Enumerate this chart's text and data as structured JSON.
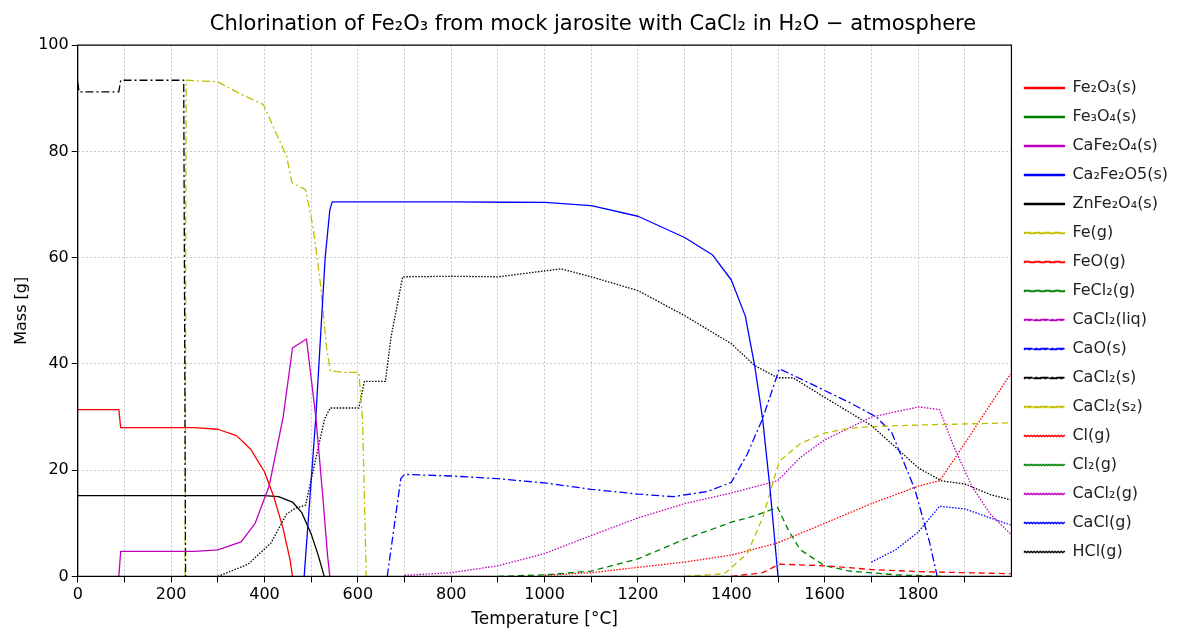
{
  "chart_data": {
    "type": "line",
    "title": "Chlorination of Fe₂O₃ from mock jarosite with CaCl₂ in H₂O − atmosphere",
    "xlabel": "Temperature [°C]",
    "ylabel": "Mass [g]",
    "xlim": [
      0,
      2000
    ],
    "xticks": [
      0,
      {
        "value": 100,
        "label": null
      },
      200,
      {
        "value": 300,
        "label": null
      },
      400,
      {
        "value": 500,
        "label": null
      },
      600,
      {
        "value": 700,
        "label": null
      },
      800,
      {
        "value": 900,
        "label": null
      },
      1000,
      {
        "value": 1100,
        "label": null
      },
      1200,
      {
        "value": 1300,
        "label": null
      },
      1400,
      {
        "value": 1500,
        "label": null
      },
      1600,
      {
        "value": 1700,
        "label": null
      },
      1800,
      {
        "value": 1900,
        "label": null
      }
    ],
    "ylim": [
      0,
      100
    ],
    "yticks": [
      0,
      20,
      40,
      60,
      80,
      100
    ],
    "grid": true,
    "legend": "right",
    "series": [
      {
        "name": "Fe₂O₃(s)",
        "color": "#ff0000",
        "line_style": "solid",
        "x": [
          0,
          88,
          92,
          250,
          300,
          340,
          370,
          400,
          420,
          440,
          455,
          460
        ],
        "values": [
          31.4,
          31.4,
          28,
          28,
          27.7,
          26.5,
          24,
          19.7,
          15,
          9,
          3,
          0
        ]
      },
      {
        "name": "Fe₃O₄(s)",
        "color": "#008000",
        "line_style": "solid"
      },
      {
        "name": "CaFe₂O₄(s)",
        "color": "#bf00bf",
        "line_style": "solid",
        "x": [
          88,
          92,
          250,
          300,
          350,
          380,
          410,
          440,
          460,
          490,
          510,
          525,
          535,
          540
        ],
        "values": [
          0,
          4.7,
          4.7,
          5,
          6.5,
          10,
          17,
          30,
          43,
          44.7,
          30,
          15,
          4,
          0
        ]
      },
      {
        "name": "Ca₂Fe₂O5(s)",
        "color": "#0000ff",
        "line_style": "solid",
        "x": [
          485,
          510,
          530,
          540,
          545,
          800,
          1000,
          1100,
          1200,
          1300,
          1360,
          1400,
          1430,
          1450,
          1467,
          1483,
          1500
        ],
        "values": [
          0,
          30,
          60,
          69,
          70.5,
          70.5,
          70.4,
          69.8,
          67.8,
          63.8,
          60.5,
          55.8,
          49,
          39.7,
          29.7,
          16.4,
          0
        ]
      },
      {
        "name": "ZnFe₂O₄(s)",
        "color": "#000000",
        "line_style": "solid",
        "x": [
          0,
          400,
          430,
          460,
          480,
          500,
          515,
          528
        ],
        "values": [
          15.2,
          15.2,
          15,
          14,
          12,
          8,
          4,
          0
        ]
      },
      {
        "name": "Fe(g)",
        "color": "#bfbf00",
        "line_style": "dashed",
        "x": [
          1300,
          1385,
          1434,
          1467,
          1487,
          1503,
          1548,
          1600,
          1654,
          1700,
          1801,
          1998
        ],
        "values": [
          0,
          0.5,
          4.3,
          11,
          17,
          21.7,
          25,
          27,
          27.9,
          28.2,
          28.5,
          28.9
        ]
      },
      {
        "name": "FeO(g)",
        "color": "#ff0000",
        "line_style": "dashed",
        "x": [
          1400,
          1467,
          1503,
          1600,
          1700,
          1801,
          1998
        ],
        "values": [
          0,
          0.7,
          2.3,
          2,
          1.3,
          0.9,
          0.5
        ]
      },
      {
        "name": "FeCl₂(g)",
        "color": "#008000",
        "line_style": "dashed",
        "x": [
          900,
          1000,
          1100,
          1200,
          1300,
          1400,
          1450,
          1499,
          1524,
          1548,
          1600,
          1654,
          1752,
          1850
        ],
        "values": [
          0,
          0.3,
          1,
          3.3,
          7,
          10.2,
          11.4,
          13,
          8.4,
          5,
          2,
          1,
          0.3,
          0
        ]
      },
      {
        "name": "CaCl₂(liq)",
        "color": "#bf00bf",
        "line_style": "dashdot"
      },
      {
        "name": "CaO(s)",
        "color": "#0000ff",
        "line_style": "dashdot",
        "x": [
          663,
          692,
          700,
          800,
          900,
          1000,
          1100,
          1200,
          1276,
          1349,
          1400,
          1434,
          1467,
          1503,
          1600,
          1654,
          1711,
          1744,
          1793,
          1825,
          1841
        ],
        "values": [
          0,
          18.4,
          19.2,
          18.9,
          18.4,
          17.6,
          16.4,
          15.5,
          15,
          16,
          17.7,
          23,
          29.7,
          39.1,
          35,
          32.7,
          30,
          27,
          16.4,
          6.3,
          0
        ]
      },
      {
        "name": "CaCl₂(s)",
        "color": "#000000",
        "line_style": "dashdot",
        "x": [
          0,
          3,
          88,
          92,
          227,
          231
        ],
        "values": [
          93,
          91.2,
          91.2,
          93.4,
          93.4,
          0
        ]
      },
      {
        "name": "CaCl₂(s₂)",
        "color": "#bfbf00",
        "line_style": "dashdot",
        "x": [
          230,
          232,
          300,
          349,
          398,
          423,
          447,
          459,
          488,
          504,
          520,
          533,
          541,
          569,
          602,
          610,
          618
        ],
        "values": [
          0,
          93.4,
          93.1,
          90.8,
          88.8,
          83.8,
          79.2,
          74.1,
          72.8,
          65.8,
          55,
          43,
          38.7,
          38.4,
          38.4,
          29.7,
          0
        ]
      },
      {
        "name": "Cl(g)",
        "color": "#ff0000",
        "line_style": "dotted",
        "x": [
          1000,
          1100,
          1200,
          1300,
          1400,
          1499,
          1600,
          1700,
          1801,
          1846,
          1900,
          1955,
          1998
        ],
        "values": [
          0.2,
          0.7,
          1.7,
          2.7,
          4,
          6.3,
          10,
          13.7,
          17,
          18,
          25,
          32.4,
          38.1
        ]
      },
      {
        "name": "Cl₂(g)",
        "color": "#008000",
        "line_style": "dotted"
      },
      {
        "name": "CaCl₂(g)",
        "color": "#bf00bf",
        "line_style": "dotted",
        "x": [
          700,
          800,
          900,
          1000,
          1100,
          1200,
          1300,
          1400,
          1499,
          1548,
          1600,
          1700,
          1801,
          1846,
          1874,
          1915,
          1955,
          1998
        ],
        "values": [
          0.2,
          0.7,
          2,
          4.3,
          7.7,
          11,
          13.7,
          15.7,
          18,
          22.4,
          25.7,
          30,
          31.9,
          31.4,
          25,
          17,
          11.7,
          8
        ]
      },
      {
        "name": "CaCl(g)",
        "color": "#0000ff",
        "line_style": "dotted",
        "x": [
          1700,
          1752,
          1801,
          1846,
          1900,
          1955,
          1998
        ],
        "values": [
          2.7,
          5,
          8.4,
          13.2,
          12.7,
          11,
          9.7
        ]
      },
      {
        "name": "HCl(g)",
        "color": "#000000",
        "line_style": "dotted",
        "x": [
          300,
          365,
          414,
          447,
          467,
          488,
          512,
          529,
          541,
          602,
          614,
          659,
          671,
          696,
          800,
          901,
          1035,
          1100,
          1200,
          1300,
          1400,
          1450,
          1499,
          1532,
          1600,
          1700,
          1801,
          1850,
          1900,
          1955,
          1998
        ],
        "values": [
          0,
          2.3,
          6.3,
          11.7,
          12.9,
          13.4,
          23,
          29.7,
          31.7,
          31.7,
          36.7,
          36.7,
          45,
          56.4,
          56.5,
          56.4,
          57.9,
          56.4,
          53.8,
          49.1,
          43.8,
          39.7,
          37.4,
          37.4,
          33.7,
          28.4,
          20.4,
          18,
          17.4,
          15.4,
          14.4
        ]
      }
    ]
  }
}
